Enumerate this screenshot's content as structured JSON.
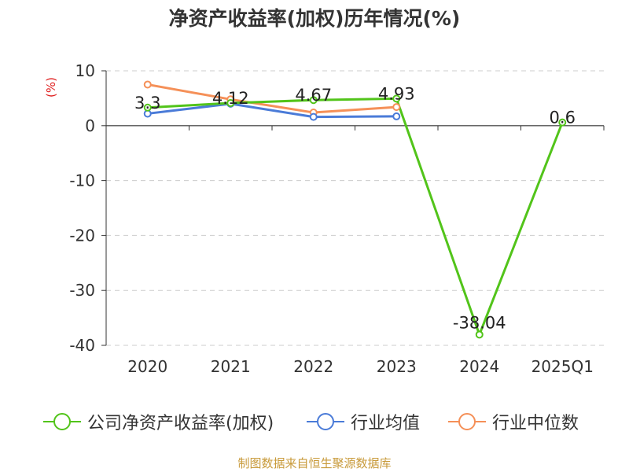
{
  "chart_data": {
    "type": "line",
    "title": "净资产收益率(加权)历年情况(%)",
    "ylabel": "(%)",
    "categories": [
      "2020",
      "2021",
      "2022",
      "2023",
      "2024",
      "2025Q1"
    ],
    "ylim": [
      -40,
      10
    ],
    "yticks": [
      10,
      0,
      -10,
      -20,
      -30,
      -40
    ],
    "grid": true,
    "legend_position": "bottom",
    "series": [
      {
        "name": "公司净资产收益率(加权)",
        "color": "#52c41a",
        "values": [
          3.3,
          4.12,
          4.67,
          4.93,
          -38.04,
          0.6
        ],
        "labels": [
          "3.3",
          "4.12",
          "4.67",
          "4.93",
          "-38.04",
          "0.6"
        ]
      },
      {
        "name": "行业均值",
        "color": "#4a7bd8",
        "values": [
          2.2,
          4.0,
          1.6,
          1.7,
          null,
          null
        ]
      },
      {
        "name": "行业中位数",
        "color": "#f59058",
        "values": [
          7.5,
          4.8,
          2.4,
          3.4,
          null,
          null
        ]
      }
    ]
  },
  "footer": {
    "source": "制图数据来自恒生聚源数据库"
  }
}
